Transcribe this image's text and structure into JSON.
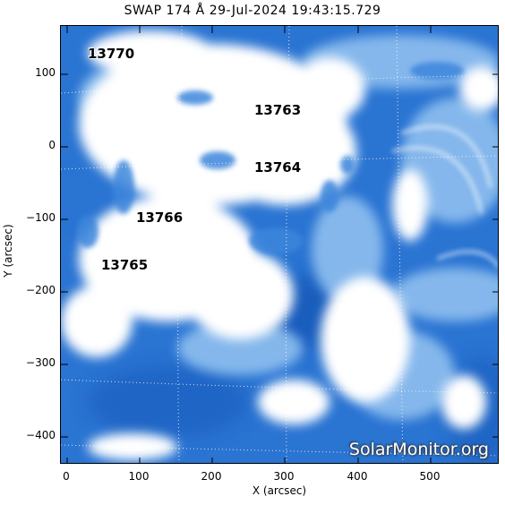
{
  "title": "SWAP 174 Å 29-Jul-2024 19:43:15.729",
  "xaxis": {
    "label": "X (arcsec)",
    "ticks": [
      "0",
      "100",
      "200",
      "300",
      "400",
      "500"
    ]
  },
  "yaxis": {
    "label": "Y (arcsec)",
    "ticks": [
      "100",
      "0",
      "−100",
      "−200",
      "−300",
      "−400"
    ]
  },
  "regions": [
    "13770",
    "13763",
    "13764",
    "13766",
    "13765"
  ],
  "watermark": "SolarMonitor.org",
  "colors": {
    "background_blue": "#2a74d2",
    "bright": "#ffffff",
    "frame": "#000000"
  }
}
